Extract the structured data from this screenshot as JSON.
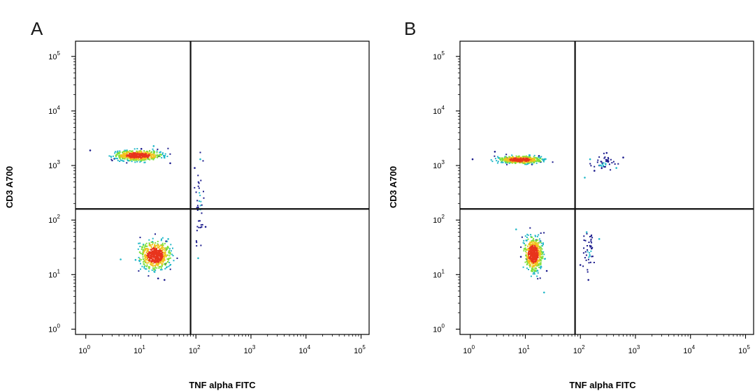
{
  "chart_data": [
    {
      "type": "scatter",
      "panel_label": "A",
      "xlabel": "TNF alpha FITC",
      "ylabel": "CD3 A700",
      "x_scale": "log",
      "y_scale": "log",
      "xlim": [
        0.65,
        140000
      ],
      "ylim": [
        0.8,
        190000
      ],
      "x_ticks": [
        {
          "base": "10",
          "exp": "0",
          "value": 1
        },
        {
          "base": "10",
          "exp": "1",
          "value": 10
        },
        {
          "base": "10",
          "exp": "2",
          "value": 100
        },
        {
          "base": "10",
          "exp": "3",
          "value": 1000
        },
        {
          "base": "10",
          "exp": "4",
          "value": 10000
        },
        {
          "base": "10",
          "exp": "5",
          "value": 100000
        }
      ],
      "y_ticks": [
        {
          "base": "10",
          "exp": "0",
          "value": 1
        },
        {
          "base": "10",
          "exp": "1",
          "value": 10
        },
        {
          "base": "10",
          "exp": "2",
          "value": 100
        },
        {
          "base": "10",
          "exp": "3",
          "value": 1000
        },
        {
          "base": "10",
          "exp": "4",
          "value": 10000
        },
        {
          "base": "10",
          "exp": "5",
          "value": 100000
        }
      ],
      "quadrant_gates": {
        "x": 80,
        "y": 160
      },
      "series": [
        {
          "x": [
            5.8,
            1.2,
            10.2,
            9.5,
            13.6,
            9.6,
            17.0,
            20.9,
            34.2,
            17.1,
            3.3,
            4.1
          ],
          "y": [
            1240,
            1890,
            2020,
            1730,
            1340,
            1600,
            1340,
            1480,
            1100,
            2270,
            1330,
            1430
          ]
        },
        {
          "x": [
            31.4,
            28.0,
            26.9,
            16.3,
            17.9,
            23.7,
            4.3,
            29.0,
            20.6,
            8.0,
            28.8,
            13.4
          ],
          "y": [
            45.0,
            15.7,
            8.0,
            40.0,
            32.4,
            34.8,
            19.0,
            28.5,
            8.5,
            18.6,
            40.8,
            21.5
          ]
        },
        {
          "x": [
            120,
            95,
            150,
            110
          ],
          "y": [
            1300,
            900,
            75,
            20
          ]
        }
      ]
    },
    {
      "type": "scatter",
      "panel_label": "B",
      "xlabel": "TNF alpha FITC",
      "ylabel": "CD3 A700",
      "x_scale": "log",
      "y_scale": "log",
      "xlim": [
        0.65,
        140000
      ],
      "ylim": [
        0.8,
        190000
      ],
      "x_ticks": [
        {
          "base": "10",
          "exp": "0",
          "value": 1
        },
        {
          "base": "10",
          "exp": "1",
          "value": 10
        },
        {
          "base": "10",
          "exp": "2",
          "value": 100
        },
        {
          "base": "10",
          "exp": "3",
          "value": 1000
        },
        {
          "base": "10",
          "exp": "4",
          "value": 10000
        },
        {
          "base": "10",
          "exp": "5",
          "value": 100000
        }
      ],
      "y_ticks": [
        {
          "base": "10",
          "exp": "0",
          "value": 1
        },
        {
          "base": "10",
          "exp": "1",
          "value": 10
        },
        {
          "base": "10",
          "exp": "2",
          "value": 100
        },
        {
          "base": "10",
          "exp": "3",
          "value": 1000
        },
        {
          "base": "10",
          "exp": "4",
          "value": 10000
        },
        {
          "base": "10",
          "exp": "5",
          "value": 100000
        }
      ],
      "quadrant_gates": {
        "x": 80,
        "y": 160
      },
      "series": [
        {
          "x": [
            9.5,
            13.2,
            12.8,
            7.9,
            2.8,
            17.7,
            11.7,
            1.1,
            5.3,
            19.1,
            4.6,
            19.0
          ],
          "y": [
            1100,
            1050,
            1150,
            1260,
            1790,
            1500,
            1410,
            1300,
            1210,
            1160,
            1390,
            1170
          ]
        },
        {
          "x": [
            150,
            220,
            300,
            450,
            600,
            180,
            120,
            250
          ],
          "y": [
            1300,
            1000,
            1700,
            900,
            1400,
            800,
            600,
            1100
          ]
        },
        {
          "x": [
            14.5,
            18.7,
            8.3,
            13.0,
            15.8,
            12.5,
            6.8,
            24.5,
            10.7,
            21.9,
            14.9,
            17.6
          ],
          "y": [
            27.7,
            41.1,
            21.2,
            25.0,
            43.0,
            33.9,
            67.5,
            11.7,
            19.2,
            4.7,
            20.6,
            26.3
          ]
        },
        {
          "x": [
            130,
            160,
            100,
            220,
            140
          ],
          "y": [
            60,
            30,
            15,
            45,
            8
          ]
        }
      ]
    }
  ],
  "colors": {
    "frame": "#000000",
    "gate": "#111111",
    "density_low": "#1a1a8c",
    "density_mid": "#22b8c8",
    "density_high1": "#7fe03a",
    "density_high2": "#f2c21e",
    "density_peak": "#e8341c"
  }
}
